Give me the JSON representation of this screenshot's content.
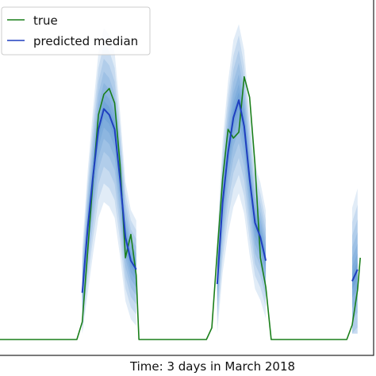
{
  "chart_data": {
    "type": "line",
    "xlabel": "Time: 3 days in March 2018",
    "ylabel": "",
    "title": "",
    "xlim": [
      0,
      72
    ],
    "ylim": [
      0,
      1
    ],
    "grid": false,
    "legend_placement": "top-left",
    "series": [
      {
        "name": "true",
        "color": "#1a7f1a",
        "points": [
          [
            0,
            0
          ],
          [
            16,
            0
          ],
          [
            17,
            0.06
          ],
          [
            18,
            0.3
          ],
          [
            19,
            0.55
          ],
          [
            20,
            0.77
          ],
          [
            21,
            0.84
          ],
          [
            22,
            0.86
          ],
          [
            23,
            0.81
          ],
          [
            24,
            0.6
          ],
          [
            25,
            0.28
          ],
          [
            26,
            0.36
          ],
          [
            27,
            0.22
          ],
          [
            27.5,
            0
          ],
          [
            28,
            0
          ],
          [
            40,
            0
          ],
          [
            41,
            0.04
          ],
          [
            42,
            0.3
          ],
          [
            43,
            0.55
          ],
          [
            44,
            0.72
          ],
          [
            45,
            0.69
          ],
          [
            46,
            0.71
          ],
          [
            47,
            0.9
          ],
          [
            48,
            0.83
          ],
          [
            49,
            0.6
          ],
          [
            50,
            0.28
          ],
          [
            51,
            0.18
          ],
          [
            52,
            0
          ],
          [
            53,
            0
          ],
          [
            66,
            0
          ],
          [
            67,
            0.05
          ],
          [
            68,
            0.17
          ],
          [
            68.5,
            0.28
          ]
        ]
      },
      {
        "name": "predicted median",
        "color": "#1f3fbf",
        "points": [
          [
            17,
            0.16
          ],
          [
            18,
            0.38
          ],
          [
            19,
            0.56
          ],
          [
            20,
            0.72
          ],
          [
            21,
            0.79
          ],
          [
            22,
            0.77
          ],
          [
            23,
            0.72
          ],
          [
            24,
            0.55
          ],
          [
            25,
            0.35
          ],
          [
            26,
            0.27
          ],
          [
            27,
            0.24
          ],
          [
            42,
            0.19
          ],
          [
            43,
            0.47
          ],
          [
            44,
            0.64
          ],
          [
            45,
            0.76
          ],
          [
            46,
            0.82
          ],
          [
            47,
            0.73
          ],
          [
            48,
            0.55
          ],
          [
            49,
            0.4
          ],
          [
            50,
            0.35
          ],
          [
            51,
            0.27
          ],
          [
            67,
            0.2
          ],
          [
            68,
            0.24
          ]
        ]
      }
    ],
    "uncertainty_band_color": "#2a7ac9"
  },
  "legend": {
    "true_label": "true",
    "median_label": "predicted median"
  }
}
